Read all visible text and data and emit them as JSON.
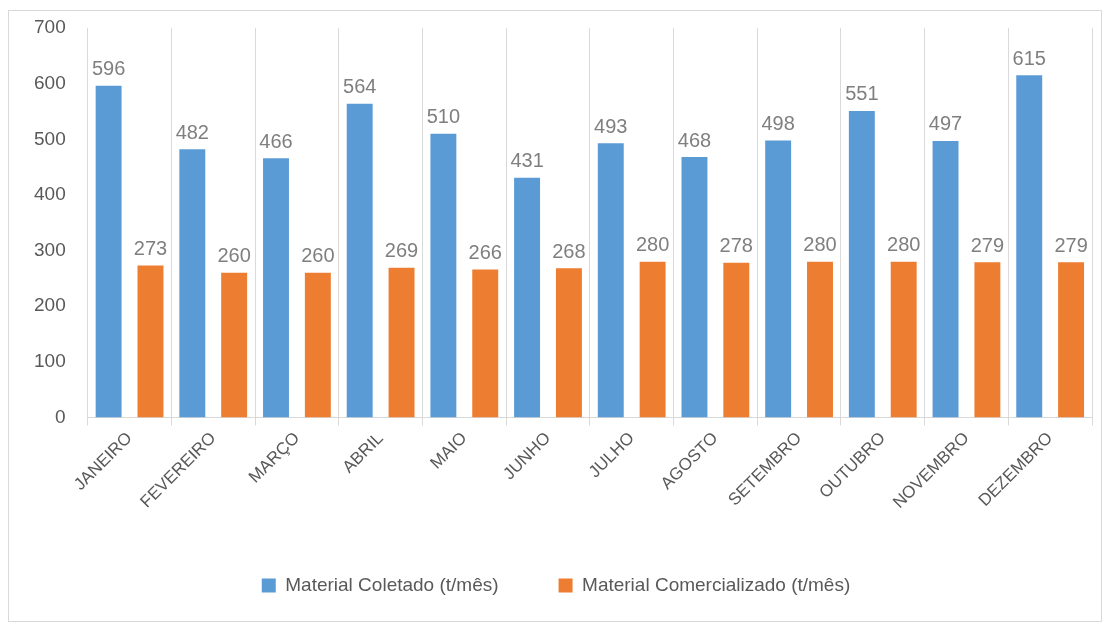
{
  "chart_data": {
    "type": "bar",
    "categories": [
      "JANEIRO",
      "FEVEREIRO",
      "MARÇO",
      "ABRIL",
      "MAIO",
      "JUNHO",
      "JULHO",
      "AGOSTO",
      "SETEMBRO",
      "OUTUBRO",
      "NOVEMBRO",
      "DEZEMBRO"
    ],
    "series": [
      {
        "name": "Material Coletado (t/mês)",
        "color": "#5b9bd5",
        "values": [
          596,
          482,
          466,
          564,
          510,
          431,
          493,
          468,
          498,
          551,
          497,
          615
        ]
      },
      {
        "name": "Material Comercializado (t/mês)",
        "color": "#ed7d31",
        "values": [
          273,
          260,
          260,
          269,
          266,
          268,
          280,
          278,
          280,
          280,
          279,
          279
        ]
      }
    ],
    "ylim": [
      0,
      700
    ],
    "yticks": [
      0,
      100,
      200,
      300,
      400,
      500,
      600,
      700
    ],
    "grid": "x",
    "legend": "bottom",
    "data_labels": true
  }
}
